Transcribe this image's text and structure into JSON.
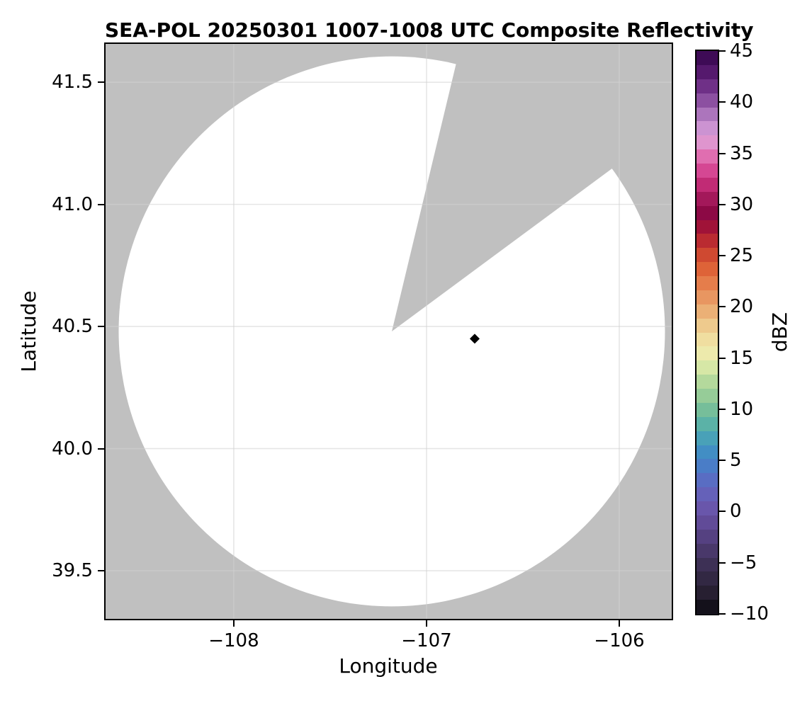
{
  "title": "SEA-POL 20250301 1007-1008 UTC Composite Reflectivity",
  "chart_data": {
    "type": "heatmap",
    "subtype": "radar-ppi-composite-reflectivity",
    "title": "SEA-POL 20250301 1007-1008 UTC Composite Reflectivity",
    "xlabel": "Longitude",
    "ylabel": "Latitude",
    "xlim": [
      -108.665,
      -105.728
    ],
    "ylim": [
      39.303,
      41.657
    ],
    "xticks": [
      -108,
      -107,
      -106
    ],
    "yticks": [
      39.5,
      40.0,
      40.5,
      41.0,
      41.5
    ],
    "grid": true,
    "background_outside_coverage": "#c0c0c0",
    "coverage_fill": "#ffffff",
    "coverage_note": "no reflectivity echoes >= -10 dBZ visible; coverage disc is blank",
    "radar": {
      "center_lon": -107.18,
      "center_lat": 40.48,
      "range_deg_lon": 1.417,
      "range_deg_lat": 1.126,
      "blocked_sector_azimuth_deg": [
        13.5,
        53.5
      ]
    },
    "marker": {
      "lon": -106.75,
      "lat": 40.45,
      "shape": "diamond",
      "color": "#000000"
    },
    "colorbar": {
      "label": "dBZ",
      "min": -10,
      "max": 45,
      "ticks": [
        45,
        40,
        35,
        30,
        25,
        20,
        15,
        10,
        5,
        0,
        -5,
        -10
      ],
      "n_steps": 40,
      "stops": [
        [
          45,
          "#30064a"
        ],
        [
          44,
          "#440d5c"
        ],
        [
          42.5,
          "#5c1e74"
        ],
        [
          41,
          "#7b3a92"
        ],
        [
          40,
          "#9055a5"
        ],
        [
          39,
          "#a770b9"
        ],
        [
          38,
          "#c08acb"
        ],
        [
          37,
          "#d69ad8"
        ],
        [
          36,
          "#e095cd"
        ],
        [
          35,
          "#e277b6"
        ],
        [
          34,
          "#dd5ba2"
        ],
        [
          33,
          "#d23e8c"
        ],
        [
          32,
          "#c22c76"
        ],
        [
          31,
          "#ad1e62"
        ],
        [
          30,
          "#97104f"
        ],
        [
          29,
          "#8a0743"
        ],
        [
          28,
          "#9c1039"
        ],
        [
          27,
          "#b01f33"
        ],
        [
          26,
          "#c23430"
        ],
        [
          25,
          "#d04a31"
        ],
        [
          24,
          "#dc5d35"
        ],
        [
          23,
          "#e37040"
        ],
        [
          22,
          "#e68350"
        ],
        [
          21,
          "#e89560"
        ],
        [
          20,
          "#eaa86f"
        ],
        [
          19,
          "#ecbb80"
        ],
        [
          18,
          "#eecd90"
        ],
        [
          17,
          "#f0dc9e"
        ],
        [
          16,
          "#f2e7aa"
        ],
        [
          15,
          "#e9edad"
        ],
        [
          14,
          "#d5e7a6"
        ],
        [
          13,
          "#bbdc9d"
        ],
        [
          12,
          "#a5d399"
        ],
        [
          11,
          "#8fc997"
        ],
        [
          10,
          "#77bf9a"
        ],
        [
          9,
          "#62b6a1"
        ],
        [
          8,
          "#52acae"
        ],
        [
          7,
          "#479fba"
        ],
        [
          6,
          "#4190c3"
        ],
        [
          5,
          "#4484c6"
        ],
        [
          4,
          "#4f78c8"
        ],
        [
          3,
          "#5a6cc3"
        ],
        [
          2,
          "#6363bb"
        ],
        [
          1,
          "#6a5cb3"
        ],
        [
          0,
          "#6853a8"
        ],
        [
          -1,
          "#614b99"
        ],
        [
          -2,
          "#594488"
        ],
        [
          -3,
          "#503d77"
        ],
        [
          -4,
          "#473767"
        ],
        [
          -5,
          "#3e3158"
        ],
        [
          -6,
          "#362b4a"
        ],
        [
          -7,
          "#2e253d"
        ],
        [
          -8,
          "#261f30"
        ],
        [
          -9,
          "#1b1724"
        ],
        [
          -9.5,
          "#100e15"
        ],
        [
          -10,
          "#040305"
        ]
      ]
    },
    "grid_color": "#d2d2d2"
  }
}
